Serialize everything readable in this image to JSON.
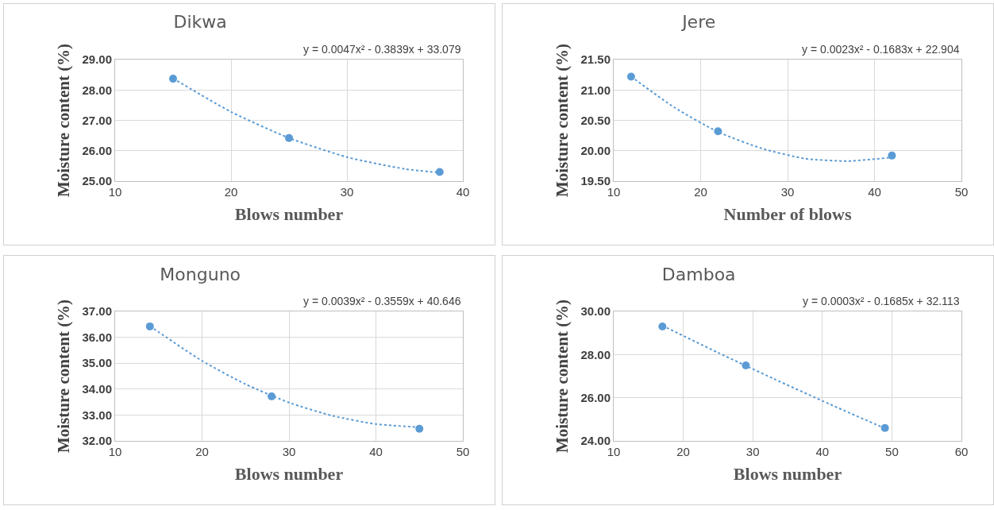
{
  "chart_data": [
    {
      "type": "scatter",
      "title": "Dikwa",
      "xlabel": "Blows number",
      "ylabel": "Moisture content (%)",
      "annotations": [
        "y = 0.0047x² - 0.3839x + 33.079"
      ],
      "xlim": [
        10,
        40
      ],
      "xticks": [
        10,
        20,
        30,
        40
      ],
      "ylim": [
        25,
        29
      ],
      "yticks": [
        {
          "value": 25,
          "label": "25.00"
        },
        {
          "value": 26,
          "label": "26.00"
        },
        {
          "value": 27,
          "label": "27.00"
        },
        {
          "value": 28,
          "label": "28.00"
        },
        {
          "value": 29,
          "label": "29.00"
        }
      ],
      "grid": true,
      "series": [
        {
          "marker": "circle",
          "color": "#5b9bd5",
          "x": [
            15,
            25,
            38
          ],
          "values": [
            28.37,
            26.42,
            25.3
          ]
        },
        {
          "type": "line",
          "marker": "none",
          "line_style": "dotted",
          "color": "#5b9bd5",
          "x": [
            15,
            20,
            25,
            30,
            35,
            38
          ],
          "values": [
            28.38,
            27.28,
            26.42,
            25.79,
            25.4,
            25.28
          ]
        }
      ]
    },
    {
      "type": "scatter",
      "title": "Jere",
      "xlabel": "Number of blows",
      "ylabel": "Moisture content (%)",
      "annotations": [
        "y = 0.0023x² - 0.1683x + 22.904"
      ],
      "xlim": [
        10,
        50
      ],
      "xticks": [
        10,
        20,
        30,
        40,
        50
      ],
      "ylim": [
        19.5,
        21.5
      ],
      "yticks": [
        {
          "value": 19.5,
          "label": "19.50"
        },
        {
          "value": 20,
          "label": "20.00"
        },
        {
          "value": 20.5,
          "label": "20.50"
        },
        {
          "value": 21,
          "label": "21.00"
        },
        {
          "value": 21.5,
          "label": "21.50"
        }
      ],
      "grid": true,
      "series": [
        {
          "marker": "circle",
          "color": "#5b9bd5",
          "x": [
            12,
            22,
            42
          ],
          "values": [
            21.22,
            20.32,
            19.92
          ]
        },
        {
          "type": "line",
          "marker": "none",
          "line_style": "dotted",
          "color": "#5b9bd5",
          "x": [
            12,
            17,
            22,
            27,
            32,
            37,
            42
          ],
          "values": [
            21.22,
            20.71,
            20.31,
            20.04,
            19.87,
            19.83,
            19.89
          ]
        }
      ]
    },
    {
      "type": "scatter",
      "title": "Monguno",
      "xlabel": "Blows number",
      "ylabel": "Moisture content (%)",
      "annotations": [
        "y = 0.0039x² - 0.3559x + 40.646"
      ],
      "xlim": [
        10,
        50
      ],
      "xticks": [
        10,
        20,
        30,
        40,
        50
      ],
      "ylim": [
        32,
        37
      ],
      "yticks": [
        {
          "value": 32,
          "label": "32.00"
        },
        {
          "value": 33,
          "label": "33.00"
        },
        {
          "value": 34,
          "label": "34.00"
        },
        {
          "value": 35,
          "label": "35.00"
        },
        {
          "value": 36,
          "label": "36.00"
        },
        {
          "value": 37,
          "label": "37.00"
        }
      ],
      "grid": true,
      "series": [
        {
          "marker": "circle",
          "color": "#5b9bd5",
          "x": [
            14,
            28,
            45
          ],
          "values": [
            36.42,
            33.72,
            32.47
          ]
        },
        {
          "type": "line",
          "marker": "none",
          "line_style": "dotted",
          "color": "#5b9bd5",
          "x": [
            14,
            20,
            25,
            30,
            35,
            40,
            45
          ],
          "values": [
            36.43,
            35.09,
            34.19,
            33.48,
            32.97,
            32.65,
            32.53
          ]
        }
      ]
    },
    {
      "type": "scatter",
      "title": "Damboa",
      "xlabel": "Blows number",
      "ylabel": "Moisture content (%)",
      "annotations": [
        "y = 0.0003x² - 0.1685x + 32.113"
      ],
      "xlim": [
        10,
        60
      ],
      "xticks": [
        10,
        20,
        30,
        40,
        50,
        60
      ],
      "ylim": [
        24,
        30
      ],
      "yticks": [
        {
          "value": 24,
          "label": "24.00"
        },
        {
          "value": 26,
          "label": "26.00"
        },
        {
          "value": 28,
          "label": "28.00"
        },
        {
          "value": 30,
          "label": "30.00"
        }
      ],
      "grid": true,
      "series": [
        {
          "marker": "circle",
          "color": "#5b9bd5",
          "x": [
            17,
            29,
            49
          ],
          "values": [
            29.3,
            27.5,
            24.6
          ]
        },
        {
          "type": "line",
          "marker": "none",
          "line_style": "dotted",
          "color": "#5b9bd5",
          "x": [
            17,
            25,
            33,
            41,
            49
          ],
          "values": [
            29.34,
            28.09,
            26.88,
            25.71,
            24.58
          ]
        }
      ]
    }
  ]
}
